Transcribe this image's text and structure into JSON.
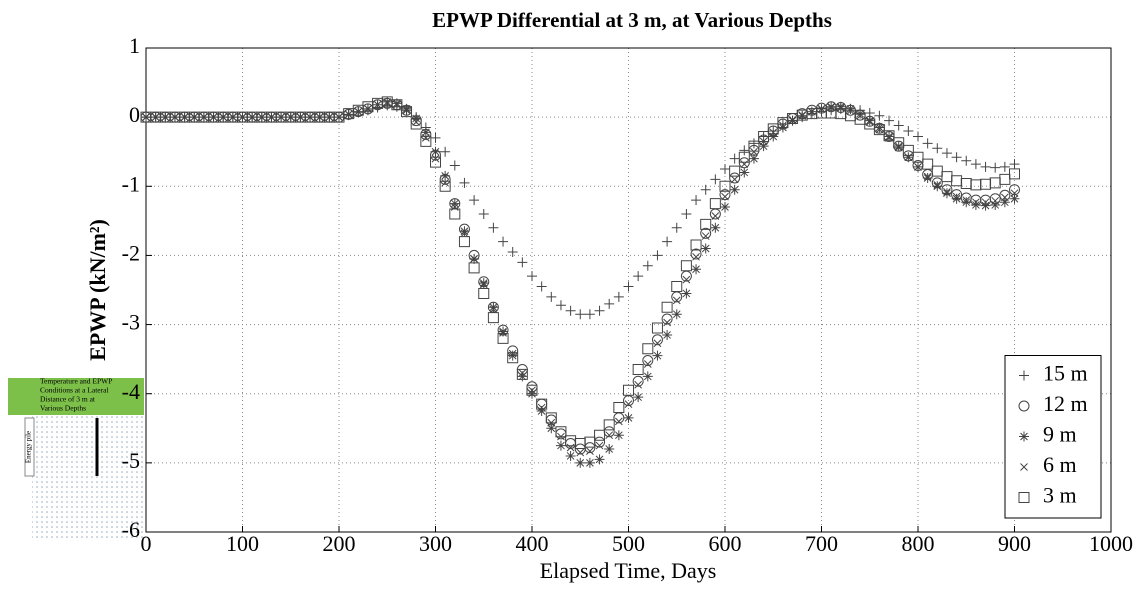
{
  "chart_data": {
    "type": "scatter",
    "title": "EPWP Differential at 3 m, at Various Depths",
    "xlabel": "Elapsed Time, Days",
    "ylabel": "EPWP (kN/m²)",
    "xlim": [
      0,
      1000
    ],
    "xticks": [
      0,
      100,
      200,
      300,
      400,
      500,
      600,
      700,
      800,
      900,
      1000
    ],
    "ylim": [
      -6,
      1
    ],
    "yticks": [
      1,
      0,
      -1,
      -2,
      -3,
      -4,
      -5,
      -6
    ],
    "grid": true,
    "legend": "lower right",
    "x": [
      0,
      10,
      20,
      30,
      40,
      50,
      60,
      70,
      80,
      90,
      100,
      110,
      120,
      130,
      140,
      150,
      160,
      170,
      180,
      190,
      200,
      210,
      220,
      230,
      240,
      250,
      260,
      270,
      280,
      290,
      300,
      310,
      320,
      330,
      340,
      350,
      360,
      370,
      380,
      390,
      400,
      410,
      420,
      430,
      440,
      450,
      460,
      470,
      480,
      490,
      500,
      510,
      520,
      530,
      540,
      550,
      560,
      570,
      580,
      590,
      600,
      610,
      620,
      630,
      640,
      650,
      660,
      670,
      680,
      690,
      700,
      710,
      720,
      730,
      740,
      750,
      760,
      770,
      780,
      790,
      800,
      810,
      820,
      830,
      840,
      850,
      860,
      870,
      880,
      890,
      900
    ],
    "series": [
      {
        "name": "15 m",
        "color": "#444444",
        "marker": "plus",
        "values": [
          0,
          0,
          0,
          0,
          0,
          0,
          0,
          0,
          0,
          0,
          0,
          0,
          0,
          0,
          0,
          0,
          0,
          0,
          0,
          0,
          0,
          0.03,
          0.07,
          0.1,
          0.14,
          0.17,
          0.15,
          0.1,
          0,
          -0.15,
          -0.3,
          -0.5,
          -0.7,
          -0.95,
          -1.2,
          -1.4,
          -1.6,
          -1.8,
          -1.95,
          -2.1,
          -2.3,
          -2.45,
          -2.6,
          -2.72,
          -2.8,
          -2.85,
          -2.85,
          -2.8,
          -2.7,
          -2.6,
          -2.45,
          -2.3,
          -2.15,
          -2,
          -1.8,
          -1.6,
          -1.4,
          -1.2,
          -1.05,
          -0.9,
          -0.75,
          -0.6,
          -0.48,
          -0.38,
          -0.28,
          -0.2,
          -0.1,
          -0.05,
          0,
          0.05,
          0.08,
          0.1,
          0.12,
          0.12,
          0.1,
          0.06,
          0.02,
          -0.05,
          -0.12,
          -0.2,
          -0.28,
          -0.38,
          -0.45,
          -0.52,
          -0.58,
          -0.63,
          -0.68,
          -0.72,
          -0.73,
          -0.72,
          -0.68
        ]
      },
      {
        "name": "12 m",
        "color": "#444444",
        "marker": "circle",
        "values": [
          0,
          0,
          0,
          0,
          0,
          0,
          0,
          0,
          0,
          0,
          0,
          0,
          0,
          0,
          0,
          0,
          0,
          0,
          0,
          0,
          0,
          0.04,
          0.08,
          0.12,
          0.18,
          0.2,
          0.18,
          0.1,
          -0.05,
          -0.25,
          -0.55,
          -0.9,
          -1.25,
          -1.62,
          -2,
          -2.38,
          -2.75,
          -3.08,
          -3.38,
          -3.65,
          -3.9,
          -4.15,
          -4.38,
          -4.58,
          -4.72,
          -4.8,
          -4.78,
          -4.7,
          -4.55,
          -4.35,
          -4.1,
          -3.82,
          -3.52,
          -3.22,
          -2.92,
          -2.6,
          -2.3,
          -1.98,
          -1.68,
          -1.4,
          -1.12,
          -0.88,
          -0.66,
          -0.48,
          -0.33,
          -0.2,
          -0.1,
          -0.02,
          0.05,
          0.1,
          0.13,
          0.15,
          0.14,
          0.1,
          0.03,
          -0.06,
          -0.16,
          -0.28,
          -0.42,
          -0.56,
          -0.7,
          -0.83,
          -0.95,
          -1.05,
          -1.12,
          -1.17,
          -1.2,
          -1.2,
          -1.18,
          -1.13,
          -1.05
        ]
      },
      {
        "name": "9 m",
        "color": "#444444",
        "marker": "star",
        "values": [
          0,
          0,
          0,
          0,
          0,
          0,
          0,
          0,
          0,
          0,
          0,
          0,
          0,
          0,
          0,
          0,
          0,
          0,
          0,
          0,
          0,
          0.04,
          0.08,
          0.12,
          0.18,
          0.22,
          0.2,
          0.12,
          -0.02,
          -0.22,
          -0.5,
          -0.85,
          -1.25,
          -1.65,
          -2.05,
          -2.4,
          -2.75,
          -3.1,
          -3.45,
          -3.75,
          -4,
          -4.25,
          -4.5,
          -4.75,
          -4.9,
          -5,
          -5,
          -4.95,
          -4.8,
          -4.6,
          -4.35,
          -4.05,
          -3.75,
          -3.45,
          -3.15,
          -2.85,
          -2.55,
          -2.2,
          -1.9,
          -1.6,
          -1.3,
          -1.05,
          -0.8,
          -0.6,
          -0.42,
          -0.28,
          -0.15,
          -0.05,
          0.02,
          0.08,
          0.12,
          0.15,
          0.15,
          0.12,
          0.05,
          -0.05,
          -0.15,
          -0.28,
          -0.42,
          -0.58,
          -0.72,
          -0.88,
          -1,
          -1.1,
          -1.18,
          -1.23,
          -1.27,
          -1.28,
          -1.27,
          -1.23,
          -1.18
        ]
      },
      {
        "name": "6 m",
        "color": "#444444",
        "marker": "cross",
        "values": [
          0,
          0,
          0,
          0,
          0,
          0,
          0,
          0,
          0,
          0,
          0,
          0,
          0,
          0,
          0,
          0,
          0,
          0,
          0,
          0,
          0,
          0.04,
          0.08,
          0.12,
          0.18,
          0.2,
          0.18,
          0.1,
          -0.07,
          -0.3,
          -0.6,
          -0.95,
          -1.3,
          -1.68,
          -2.05,
          -2.42,
          -2.78,
          -3.12,
          -3.42,
          -3.7,
          -3.95,
          -4.2,
          -4.42,
          -4.62,
          -4.78,
          -4.85,
          -4.83,
          -4.75,
          -4.6,
          -4.4,
          -4.15,
          -3.87,
          -3.57,
          -3.27,
          -2.97,
          -2.65,
          -2.35,
          -2.02,
          -1.72,
          -1.43,
          -1.15,
          -0.9,
          -0.68,
          -0.5,
          -0.35,
          -0.22,
          -0.12,
          -0.04,
          0.03,
          0.08,
          0.12,
          0.14,
          0.13,
          0.09,
          0.02,
          -0.07,
          -0.18,
          -0.3,
          -0.44,
          -0.58,
          -0.72,
          -0.86,
          -0.98,
          -1.08,
          -1.15,
          -1.2,
          -1.23,
          -1.23,
          -1.21,
          -1.16,
          -1.1
        ]
      },
      {
        "name": "3 m",
        "color": "#444444",
        "marker": "square",
        "values": [
          0,
          0,
          0,
          0,
          0,
          0,
          0,
          0,
          0,
          0,
          0,
          0,
          0,
          0,
          0,
          0,
          0,
          0,
          0,
          0,
          0,
          0.05,
          0.1,
          0.15,
          0.2,
          0.22,
          0.18,
          0.08,
          -0.1,
          -0.35,
          -0.65,
          -1,
          -1.4,
          -1.8,
          -2.18,
          -2.55,
          -2.9,
          -3.2,
          -3.48,
          -3.72,
          -3.95,
          -4.15,
          -4.35,
          -4.55,
          -4.68,
          -4.72,
          -4.7,
          -4.6,
          -4.45,
          -4.2,
          -3.95,
          -3.65,
          -3.35,
          -3.05,
          -2.75,
          -2.45,
          -2.15,
          -1.85,
          -1.55,
          -1.25,
          -1,
          -0.78,
          -0.58,
          -0.42,
          -0.28,
          -0.17,
          -0.08,
          -0.02,
          0.03,
          0.05,
          0.06,
          0.06,
          0.05,
          0.02,
          -0.03,
          -0.1,
          -0.18,
          -0.27,
          -0.37,
          -0.48,
          -0.58,
          -0.68,
          -0.78,
          -0.86,
          -0.92,
          -0.96,
          -0.98,
          -0.97,
          -0.95,
          -0.9,
          -0.82
        ]
      }
    ]
  },
  "inset": {
    "caption": [
      "Temperature and EPWP",
      "Conditions at a Lateral",
      "Distance of 3 m at",
      "Various Depths"
    ],
    "pile_label": "Energy pile"
  }
}
